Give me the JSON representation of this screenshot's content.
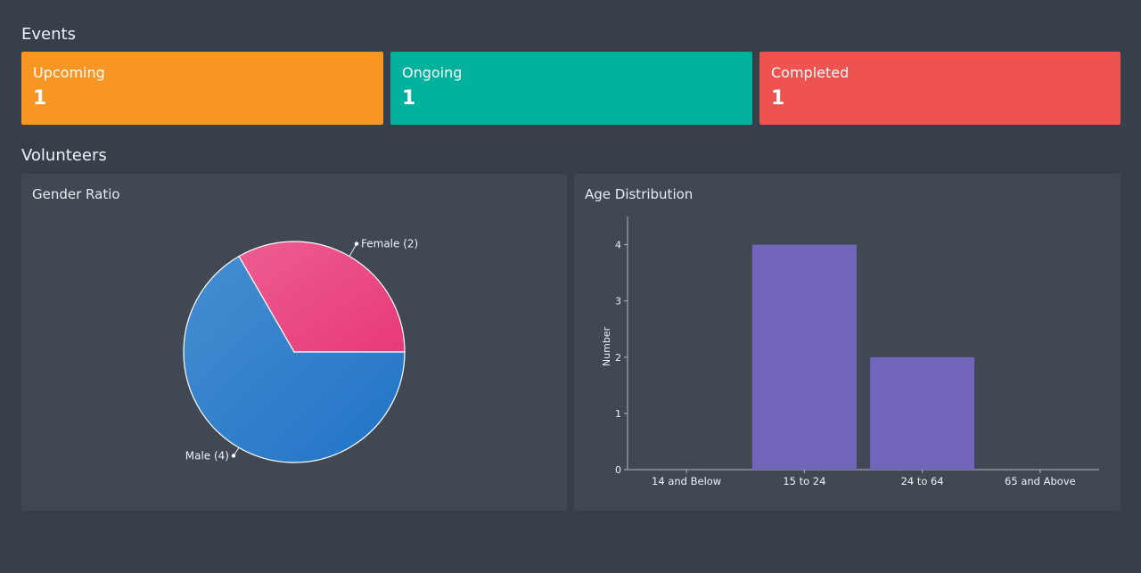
{
  "events": {
    "title": "Events",
    "cards": [
      {
        "label": "Upcoming",
        "value": "1",
        "color": "#f79622"
      },
      {
        "label": "Ongoing",
        "value": "1",
        "color": "#00b19d"
      },
      {
        "label": "Completed",
        "value": "1",
        "color": "#ef5350"
      }
    ]
  },
  "volunteers": {
    "title": "Volunteers"
  },
  "gender_panel": {
    "title": "Gender Ratio"
  },
  "age_panel": {
    "title": "Age Distribution"
  },
  "chart_data": [
    {
      "type": "pie",
      "title": "Gender Ratio",
      "slices": [
        {
          "label": "Female (2)",
          "name": "Female",
          "value": 2,
          "color": "#e8397a"
        },
        {
          "label": "Male (4)",
          "name": "Male",
          "value": 4,
          "color": "#1f74c6"
        }
      ]
    },
    {
      "type": "bar",
      "title": "Age Distribution",
      "xlabel": "",
      "ylabel": "Number",
      "categories": [
        "14 and Below",
        "15 to 24",
        "24 to 64",
        "65 and Above"
      ],
      "values": [
        0,
        4,
        2,
        0
      ],
      "ylim": [
        0,
        4.5
      ],
      "yticks": [
        0,
        1,
        2,
        3,
        4
      ],
      "color": "#7166bb",
      "grid": false
    }
  ]
}
